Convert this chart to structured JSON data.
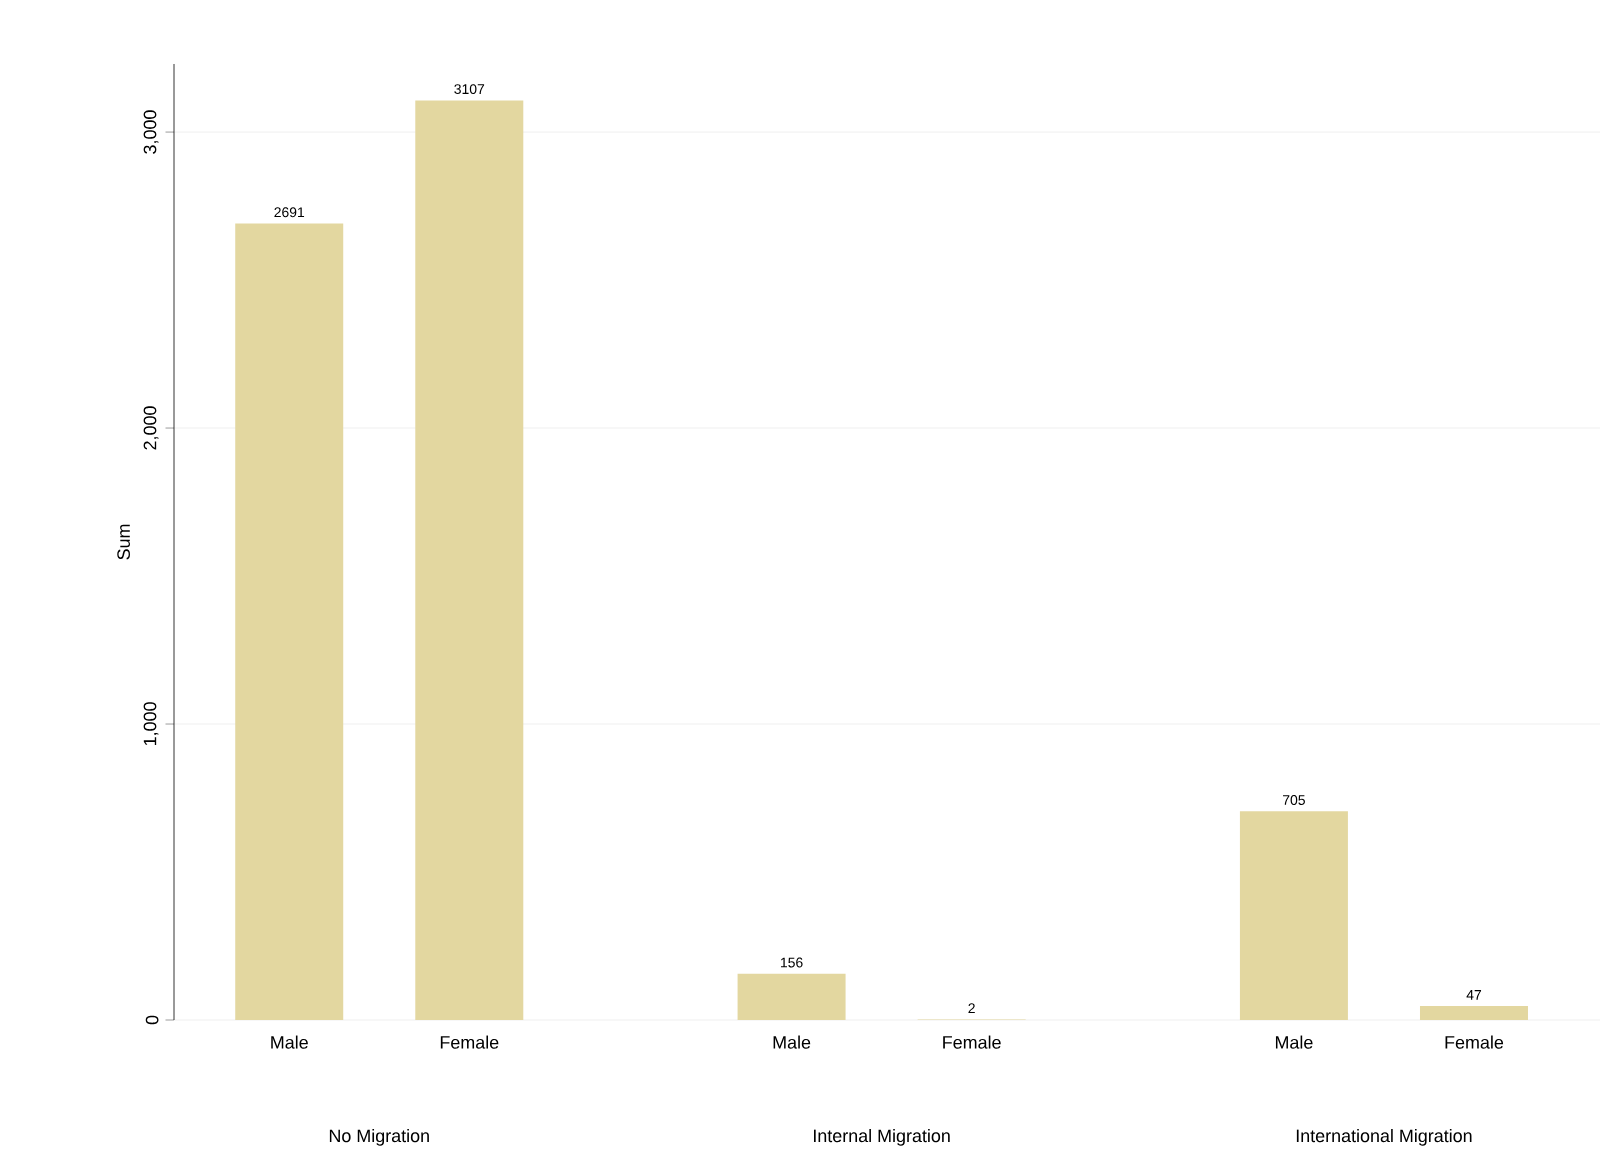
{
  "chart_data": {
    "type": "bar",
    "ylabel": "Sum",
    "categories": [
      "Male",
      "Female",
      "Male",
      "Female",
      "Male",
      "Female"
    ],
    "values": [
      2691,
      3107,
      156,
      2,
      705,
      47
    ],
    "color": "#e3d7a0",
    "annotations": [
      "No Migration",
      "Internal Migration",
      "International Migration"
    ],
    "ylim": [
      0,
      3230
    ],
    "yticks": [
      0,
      {
        "value": 1000,
        "label": "1,000"
      },
      {
        "value": 2000,
        "label": "2,000"
      },
      {
        "value": 3000,
        "label": "3,000"
      }
    ],
    "grid": "y",
    "data_labels": true
  }
}
